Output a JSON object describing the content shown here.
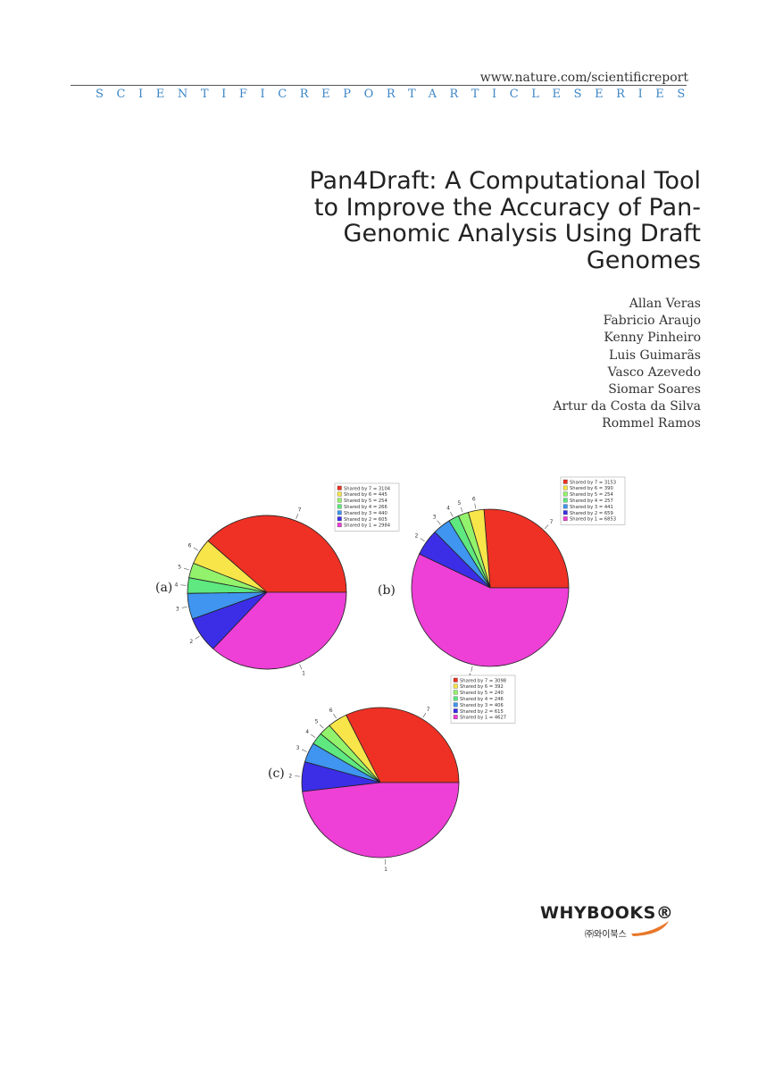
{
  "header": {
    "url": "www.nature.com/scientificreport",
    "series": "SCIENTIFICREPORTARTICLESERIES"
  },
  "title_lines": [
    "Pan4Draft: A Computational Tool",
    "to Improve the Accuracy of Pan-",
    "Genomic Analysis Using Draft",
    "Genomes"
  ],
  "authors": [
    "Allan Veras",
    "Fabricio Araujo",
    "Kenny Pinheiro",
    "Luis Guimarãs",
    "Vasco Azevedo",
    "Siomar Soares",
    "Artur da Costa da Silva",
    "Rommel Ramos"
  ],
  "colors": {
    "series_text": "#3d86c6",
    "logo_accent": "#e8782a"
  },
  "chart_data": [
    {
      "type": "pie",
      "panel_label": "(a)",
      "categories": [
        "7",
        "6",
        "5",
        "4",
        "3",
        "2",
        "1"
      ],
      "legend": [
        "Shared by 7 = 3104",
        "Shared by 6 = 445",
        "Shared by 5 = 254",
        "Shared by 4 = 266",
        "Shared by 3 = 440",
        "Shared by 2 = 605",
        "Shared by 1 = 2984"
      ],
      "values": [
        3104,
        445,
        254,
        266,
        440,
        605,
        2984
      ],
      "colors": [
        "#ee3124",
        "#f7e54a",
        "#93f26b",
        "#5ee87f",
        "#3f95ef",
        "#3b2ee6",
        "#ee3fd6"
      ]
    },
    {
      "type": "pie",
      "panel_label": "(b)",
      "categories": [
        "7",
        "6",
        "5",
        "4",
        "3",
        "2",
        "1"
      ],
      "legend": [
        "Shared by 7 = 3153",
        "Shared by 6 = 390",
        "Shared by 5 = 254",
        "Shared by 4 = 257",
        "Shared by 3 = 441",
        "Shared by 2 = 659",
        "Shared by 1 = 6853"
      ],
      "values": [
        3153,
        390,
        254,
        257,
        441,
        659,
        6853
      ],
      "colors": [
        "#ee3124",
        "#f7e54a",
        "#93f26b",
        "#5ee87f",
        "#3f95ef",
        "#3b2ee6",
        "#ee3fd6"
      ]
    },
    {
      "type": "pie",
      "panel_label": "(c)",
      "categories": [
        "7",
        "6",
        "5",
        "4",
        "3",
        "2",
        "1"
      ],
      "legend": [
        "Shared by 7 = 3098",
        "Shared by 6 = 392",
        "Shared by 5 = 240",
        "Shared by 4 = 246",
        "Shared by 3 = 406",
        "Shared by 2 = 615",
        "Shared by 1 = 4627"
      ],
      "values": [
        3098,
        392,
        240,
        246,
        406,
        615,
        4627
      ],
      "colors": [
        "#ee3124",
        "#f7e54a",
        "#93f26b",
        "#5ee87f",
        "#3f95ef",
        "#3b2ee6",
        "#ee3fd6"
      ]
    }
  ],
  "logo": {
    "name": "WHYBOOKS",
    "registered": "®",
    "subtitle": "㈜와이북스"
  }
}
